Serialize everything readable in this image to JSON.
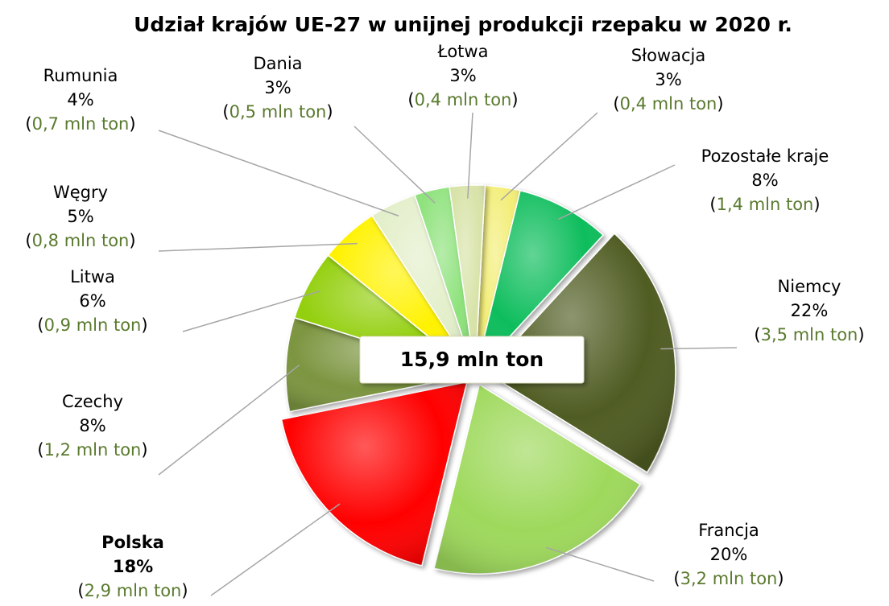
{
  "chart_data": {
    "type": "pie",
    "title": "Udział krajów UE-27 w unijnej produkcji rzepaku w 2020 r.",
    "total_label": "15,9 mln ton",
    "categories": [
      "Słowacja",
      "Pozostałe kraje",
      "Niemcy",
      "Francja",
      "Polska",
      "Czechy",
      "Litwa",
      "Węgry",
      "Rumunia",
      "Dania",
      "Łotwa"
    ],
    "values": [
      3,
      8,
      22,
      20,
      18,
      8,
      6,
      5,
      4,
      3,
      3
    ],
    "value_labels": [
      "3%",
      "8%",
      "22%",
      "20%",
      "18%",
      "8%",
      "6%",
      "5%",
      "4%",
      "3%",
      "3%"
    ],
    "tonnes": [
      0.4,
      1.4,
      3.5,
      3.2,
      2.9,
      1.2,
      0.9,
      0.8,
      0.7,
      0.5,
      0.4
    ],
    "tonnes_labels": [
      "(0,4 mln ton)",
      "(1,4 mln ton)",
      "(3,5 mln ton)",
      "(3,2 mln ton)",
      "(2,9 mln ton)",
      "(1,2 mln ton)",
      "(0,9 mln ton)",
      "(0,8 mln ton)",
      "(0,7 mln ton)",
      "(0,5 mln ton)",
      "(0,4 mln ton)"
    ],
    "colors": [
      "#f3ee78",
      "#0cbd5c",
      "#4f5c23",
      "#9ed95b",
      "#ff0000",
      "#7c9541",
      "#93cf0a",
      "#fff200",
      "#e3efca",
      "#8ee27b",
      "#d8e3a9"
    ],
    "exploded": [
      "Niemcy",
      "Francja",
      "Polska"
    ],
    "highlight": "Polska"
  }
}
